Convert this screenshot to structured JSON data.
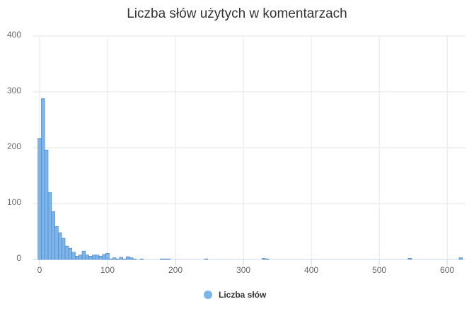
{
  "chart_data": {
    "type": "histogram",
    "title": "Liczba słów użytych w komentarzach",
    "series_name": "Liczba słów",
    "color": "#7cb5ec",
    "bins": [
      -2.5,
      2.5,
      7.5,
      12.5,
      17.5,
      22.5,
      27.5,
      32.5,
      37.5,
      42.5,
      47.5,
      52.5,
      57.5,
      62.5,
      67.5,
      72.5,
      77.5,
      82.5,
      87.5,
      92.5,
      97.5,
      102.5,
      107.5,
      112.5,
      117.5,
      122.5,
      127.5,
      132.5,
      137.5,
      142.5,
      147.5,
      152.5,
      157.5,
      162.5,
      167.5,
      172.5,
      177.5,
      182.5,
      187.5,
      192.5,
      197.5,
      202.5,
      207.5,
      212.5,
      217.5,
      222.5,
      227.5,
      232.5,
      237.5,
      242.5,
      247.5,
      252.5,
      257.5,
      262.5,
      267.5,
      272.5,
      277.5,
      282.5,
      287.5,
      292.5,
      297.5,
      302.5,
      307.5,
      312.5,
      317.5,
      322.5,
      327.5,
      332.5,
      337.5,
      342.5,
      347.5,
      352.5,
      357.5,
      362.5,
      367.5,
      372.5,
      377.5,
      382.5,
      387.5,
      392.5,
      397.5,
      402.5,
      407.5,
      412.5,
      417.5,
      422.5,
      427.5,
      432.5,
      437.5,
      442.5,
      447.5,
      452.5,
      457.5,
      462.5,
      467.5,
      472.5,
      477.5,
      482.5,
      487.5,
      492.5,
      497.5,
      502.5,
      507.5,
      512.5,
      517.5,
      522.5,
      527.5,
      532.5,
      537.5,
      542.5,
      547.5,
      552.5,
      557.5,
      562.5,
      567.5,
      572.5,
      577.5,
      582.5,
      587.5,
      592.5,
      597.5,
      602.5,
      607.5,
      612.5,
      617.5,
      622.5
    ],
    "values": [
      217,
      288,
      196,
      120,
      86,
      59,
      48,
      38,
      24,
      20,
      13,
      6,
      8,
      15,
      8,
      6,
      8,
      8,
      6,
      9,
      11,
      1,
      3,
      1,
      4,
      1,
      5,
      3,
      1,
      0,
      1,
      0,
      0,
      0,
      0,
      0,
      1,
      1,
      1,
      0,
      0,
      0,
      0,
      0,
      0,
      0,
      0,
      0,
      0,
      1,
      0,
      0,
      0,
      0,
      0,
      0,
      0,
      0,
      0,
      0,
      0,
      0,
      0,
      0,
      0,
      0,
      2,
      1,
      0,
      0,
      0,
      0,
      0,
      0,
      0,
      0,
      0,
      0,
      0,
      0,
      0,
      0,
      0,
      0,
      0,
      0,
      0,
      0,
      0,
      0,
      0,
      0,
      0,
      0,
      0,
      0,
      0,
      0,
      0,
      0,
      0,
      0,
      0,
      0,
      0,
      0,
      0,
      0,
      0,
      2,
      0,
      0,
      0,
      0,
      0,
      0,
      0,
      0,
      0,
      0,
      0,
      0,
      0,
      0,
      3
    ],
    "xlim": [
      -10,
      627
    ],
    "ylim": [
      0,
      400
    ],
    "xticks": [
      0,
      100,
      200,
      300,
      400,
      500,
      600
    ],
    "yticks": [
      0,
      100,
      200,
      300,
      400
    ],
    "grid": true
  }
}
